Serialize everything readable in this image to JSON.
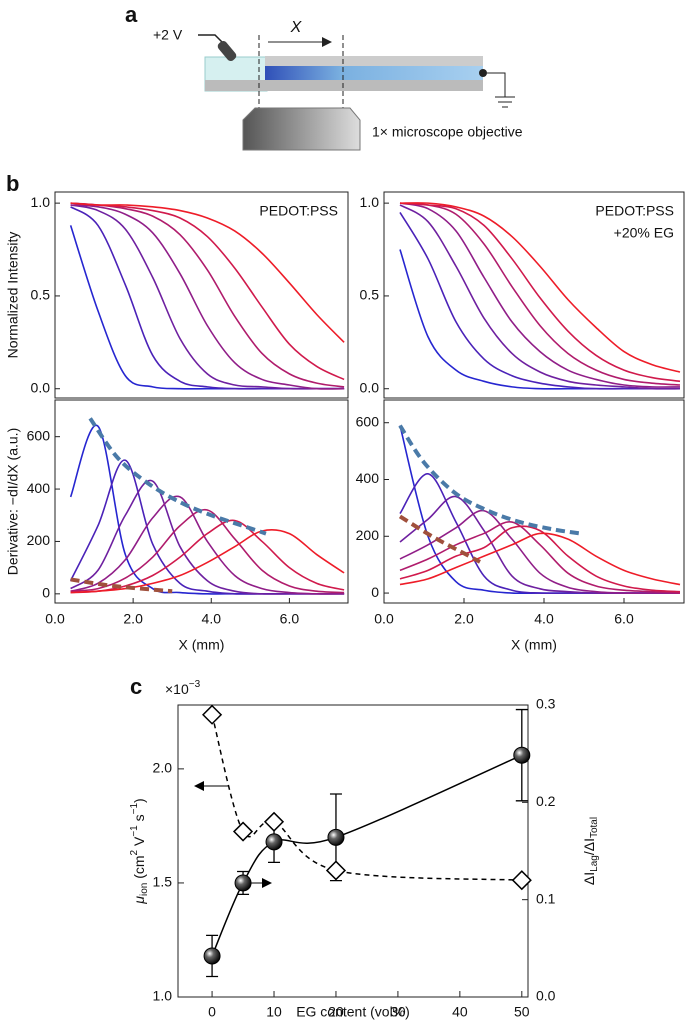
{
  "panel_labels": {
    "a": "a",
    "b": "b",
    "c": "c"
  },
  "diagram": {
    "voltage": "+2 V",
    "distance": "X",
    "objective": "1× microscope objective"
  },
  "chart_data": [
    {
      "type": "line",
      "annotation": [
        "PEDOT:PSS"
      ],
      "ylabel": "Normalized Intensity",
      "xlim": [
        0,
        7.5
      ],
      "ylim": [
        -0.05,
        1.06
      ],
      "yticks": [
        {
          "value": 0,
          "label": "0.0"
        },
        0.5,
        {
          "value": 1,
          "label": "1.0"
        }
      ],
      "x": [
        0.4,
        1.1,
        1.8,
        2.5,
        3.2,
        3.9,
        4.6,
        5.3,
        6.0,
        6.7,
        7.4
      ],
      "series": [
        {
          "color": "#2626d0",
          "values": [
            0.88,
            0.42,
            0.07,
            0.01,
            0,
            0,
            0,
            0,
            0,
            0,
            0
          ]
        },
        {
          "color": "#4a22b8",
          "values": [
            0.98,
            0.88,
            0.56,
            0.18,
            0.04,
            0.01,
            0,
            0,
            0,
            0,
            0
          ]
        },
        {
          "color": "#6e20a0",
          "values": [
            0.99,
            0.96,
            0.86,
            0.6,
            0.27,
            0.08,
            0.02,
            0.01,
            0,
            0,
            0
          ]
        },
        {
          "color": "#901e88",
          "values": [
            0.99,
            0.98,
            0.94,
            0.84,
            0.62,
            0.34,
            0.14,
            0.05,
            0.02,
            0,
            0
          ]
        },
        {
          "color": "#b01c6c",
          "values": [
            1,
            0.99,
            0.97,
            0.93,
            0.83,
            0.64,
            0.39,
            0.19,
            0.08,
            0.03,
            0.01
          ]
        },
        {
          "color": "#d01a4c",
          "values": [
            1,
            0.99,
            0.98,
            0.96,
            0.92,
            0.82,
            0.65,
            0.44,
            0.24,
            0.12,
            0.05
          ]
        },
        {
          "color": "#ee1c28",
          "values": [
            1,
            0.99,
            0.99,
            0.98,
            0.96,
            0.92,
            0.85,
            0.73,
            0.57,
            0.4,
            0.25
          ]
        }
      ]
    },
    {
      "type": "line",
      "annotation": [
        "PEDOT:PSS",
        "+20% EG"
      ],
      "xlim": [
        0,
        7.5
      ],
      "ylim": [
        -0.05,
        1.06
      ],
      "yticks": [
        {
          "value": 0,
          "label": "0.0"
        },
        0.5,
        {
          "value": 1,
          "label": "1.0"
        }
      ],
      "x": [
        0.4,
        1.1,
        1.8,
        2.5,
        3.2,
        3.9,
        4.6,
        5.3,
        6.0,
        6.7,
        7.4
      ],
      "series": [
        {
          "color": "#2626d0",
          "values": [
            0.75,
            0.28,
            0.1,
            0.04,
            0.01,
            0,
            0,
            0,
            0,
            0,
            0
          ]
        },
        {
          "color": "#4a22b8",
          "values": [
            0.95,
            0.7,
            0.36,
            0.16,
            0.07,
            0.03,
            0.01,
            0,
            0,
            0,
            0
          ]
        },
        {
          "color": "#6e20a0",
          "values": [
            0.99,
            0.9,
            0.66,
            0.38,
            0.19,
            0.09,
            0.04,
            0.02,
            0.01,
            0,
            0
          ]
        },
        {
          "color": "#901e88",
          "values": [
            1,
            0.97,
            0.85,
            0.6,
            0.36,
            0.2,
            0.1,
            0.05,
            0.02,
            0.01,
            0.01
          ]
        },
        {
          "color": "#b01c6c",
          "values": [
            1,
            0.99,
            0.94,
            0.78,
            0.55,
            0.34,
            0.19,
            0.1,
            0.05,
            0.03,
            0.02
          ]
        },
        {
          "color": "#d01a4c",
          "values": [
            1,
            0.99,
            0.97,
            0.88,
            0.7,
            0.49,
            0.31,
            0.18,
            0.1,
            0.06,
            0.04
          ]
        },
        {
          "color": "#ee1c28",
          "values": [
            1,
            1,
            0.98,
            0.93,
            0.82,
            0.66,
            0.48,
            0.33,
            0.2,
            0.13,
            0.09
          ]
        }
      ]
    },
    {
      "type": "line",
      "ylabel": "Derivative: −dI/dX (a.u.)",
      "xlabel": "X (mm)",
      "xlim": [
        0,
        7.5
      ],
      "ylim": [
        -35,
        740
      ],
      "xticks": [
        {
          "value": 0,
          "label": "0.0"
        },
        {
          "value": 2,
          "label": "2.0"
        },
        {
          "value": 4,
          "label": "4.0"
        },
        {
          "value": 6,
          "label": "6.0"
        }
      ],
      "yticks": [
        0,
        200,
        400,
        600
      ],
      "x": [
        0.4,
        1.1,
        1.8,
        2.5,
        3.2,
        3.9,
        4.6,
        5.3,
        6.0,
        6.7,
        7.4
      ],
      "series": [
        {
          "color": "#2626d0",
          "values": [
            370,
            640,
            150,
            20,
            5,
            0,
            0,
            0,
            0,
            0,
            0
          ]
        },
        {
          "color": "#4a22b8",
          "values": [
            50,
            260,
            510,
            190,
            40,
            10,
            0,
            0,
            0,
            0,
            0
          ]
        },
        {
          "color": "#6e20a0",
          "values": [
            20,
            90,
            300,
            430,
            180,
            50,
            10,
            0,
            0,
            0,
            0
          ]
        },
        {
          "color": "#901e88",
          "values": [
            10,
            40,
            130,
            290,
            370,
            200,
            70,
            20,
            5,
            0,
            0
          ]
        },
        {
          "color": "#b01c6c",
          "values": [
            10,
            20,
            60,
            140,
            260,
            320,
            210,
            90,
            30,
            10,
            5
          ]
        },
        {
          "color": "#d01a4c",
          "values": [
            5,
            10,
            30,
            70,
            140,
            230,
            280,
            200,
            100,
            40,
            15
          ]
        },
        {
          "color": "#ee1c28",
          "values": [
            5,
            10,
            20,
            40,
            70,
            120,
            180,
            240,
            230,
            150,
            80
          ]
        }
      ],
      "fits": [
        {
          "color": "#4a7aa8",
          "x": [
            0.9,
            1.6,
            2.4,
            3.2,
            4.0,
            4.8,
            5.4
          ],
          "values": [
            670,
            520,
            420,
            350,
            300,
            260,
            230
          ]
        },
        {
          "color": "#a0503c",
          "x": [
            0.4,
            1.5,
            3.0
          ],
          "values": [
            55,
            30,
            10
          ]
        }
      ]
    },
    {
      "type": "line",
      "xlabel": "X (mm)",
      "xlim": [
        0,
        7.5
      ],
      "ylim": [
        -35,
        680
      ],
      "xticks": [
        {
          "value": 0,
          "label": "0.0"
        },
        {
          "value": 2,
          "label": "2.0"
        },
        {
          "value": 4,
          "label": "4.0"
        },
        {
          "value": 6,
          "label": "6.0"
        }
      ],
      "yticks": [
        0,
        200,
        400,
        600
      ],
      "x": [
        0.4,
        1.1,
        1.8,
        2.5,
        3.2,
        3.9,
        4.6,
        5.3,
        6.0,
        6.7,
        7.4
      ],
      "series": [
        {
          "color": "#2626d0",
          "values": [
            590,
            200,
            40,
            10,
            0,
            0,
            0,
            0,
            0,
            0,
            0
          ]
        },
        {
          "color": "#4a22b8",
          "values": [
            280,
            420,
            250,
            60,
            10,
            0,
            0,
            0,
            0,
            0,
            0
          ]
        },
        {
          "color": "#6e20a0",
          "values": [
            180,
            260,
            340,
            220,
            60,
            15,
            5,
            0,
            0,
            0,
            0
          ]
        },
        {
          "color": "#901e88",
          "values": [
            120,
            170,
            230,
            290,
            190,
            70,
            20,
            5,
            0,
            0,
            0
          ]
        },
        {
          "color": "#b01c6c",
          "values": [
            80,
            120,
            170,
            210,
            250,
            170,
            70,
            25,
            10,
            5,
            0
          ]
        },
        {
          "color": "#d01a4c",
          "values": [
            50,
            80,
            130,
            160,
            230,
            220,
            130,
            60,
            25,
            10,
            5
          ]
        },
        {
          "color": "#ee1c28",
          "values": [
            30,
            50,
            90,
            130,
            170,
            210,
            190,
            130,
            80,
            50,
            30
          ]
        }
      ],
      "fits": [
        {
          "color": "#4a7aa8",
          "x": [
            0.4,
            1.0,
            1.8,
            2.6,
            3.4,
            4.2,
            4.9
          ],
          "values": [
            590,
            460,
            350,
            290,
            250,
            225,
            210
          ]
        },
        {
          "color": "#a0503c",
          "x": [
            0.4,
            1.2,
            2.0,
            2.4
          ],
          "values": [
            270,
            200,
            140,
            110
          ]
        }
      ]
    },
    {
      "type": "scatter",
      "xlabel": "EG content (vol%)",
      "ylabel": [
        "μ",
        "ion",
        " (cm",
        "2",
        " V",
        "−1",
        " s",
        "−1",
        ")"
      ],
      "y2label": [
        "ΔI",
        "Lag",
        "/ΔI",
        "Total"
      ],
      "multiplier": [
        "×10",
        "−3"
      ],
      "xlim": [
        -5.5,
        51
      ],
      "xticks": [
        0,
        10,
        20,
        30,
        40,
        50
      ],
      "ylim": [
        1.0,
        2.28
      ],
      "yticks": [
        {
          "value": 1.0,
          "label": "1.0"
        },
        1.5,
        {
          "value": 2.0,
          "label": "2.0"
        }
      ],
      "y2lim": [
        0,
        0.3
      ],
      "y2ticks": [
        {
          "value": 0,
          "label": "0.0"
        },
        0.1,
        0.2,
        0.3
      ],
      "x": [
        0,
        5,
        10,
        20,
        50
      ],
      "series": [
        {
          "color": "#000000",
          "marker": "sphere",
          "values": [
            1.18,
            1.5,
            1.68,
            1.7,
            2.06
          ],
          "errors": [
            0.09,
            0.05,
            0.09,
            0.19,
            0.2
          ]
        },
        {
          "color": "#000000",
          "marker": "diamond",
          "axis": "y2",
          "values": [
            0.29,
            0.17,
            0.18,
            0.13,
            0.12
          ]
        }
      ]
    }
  ]
}
